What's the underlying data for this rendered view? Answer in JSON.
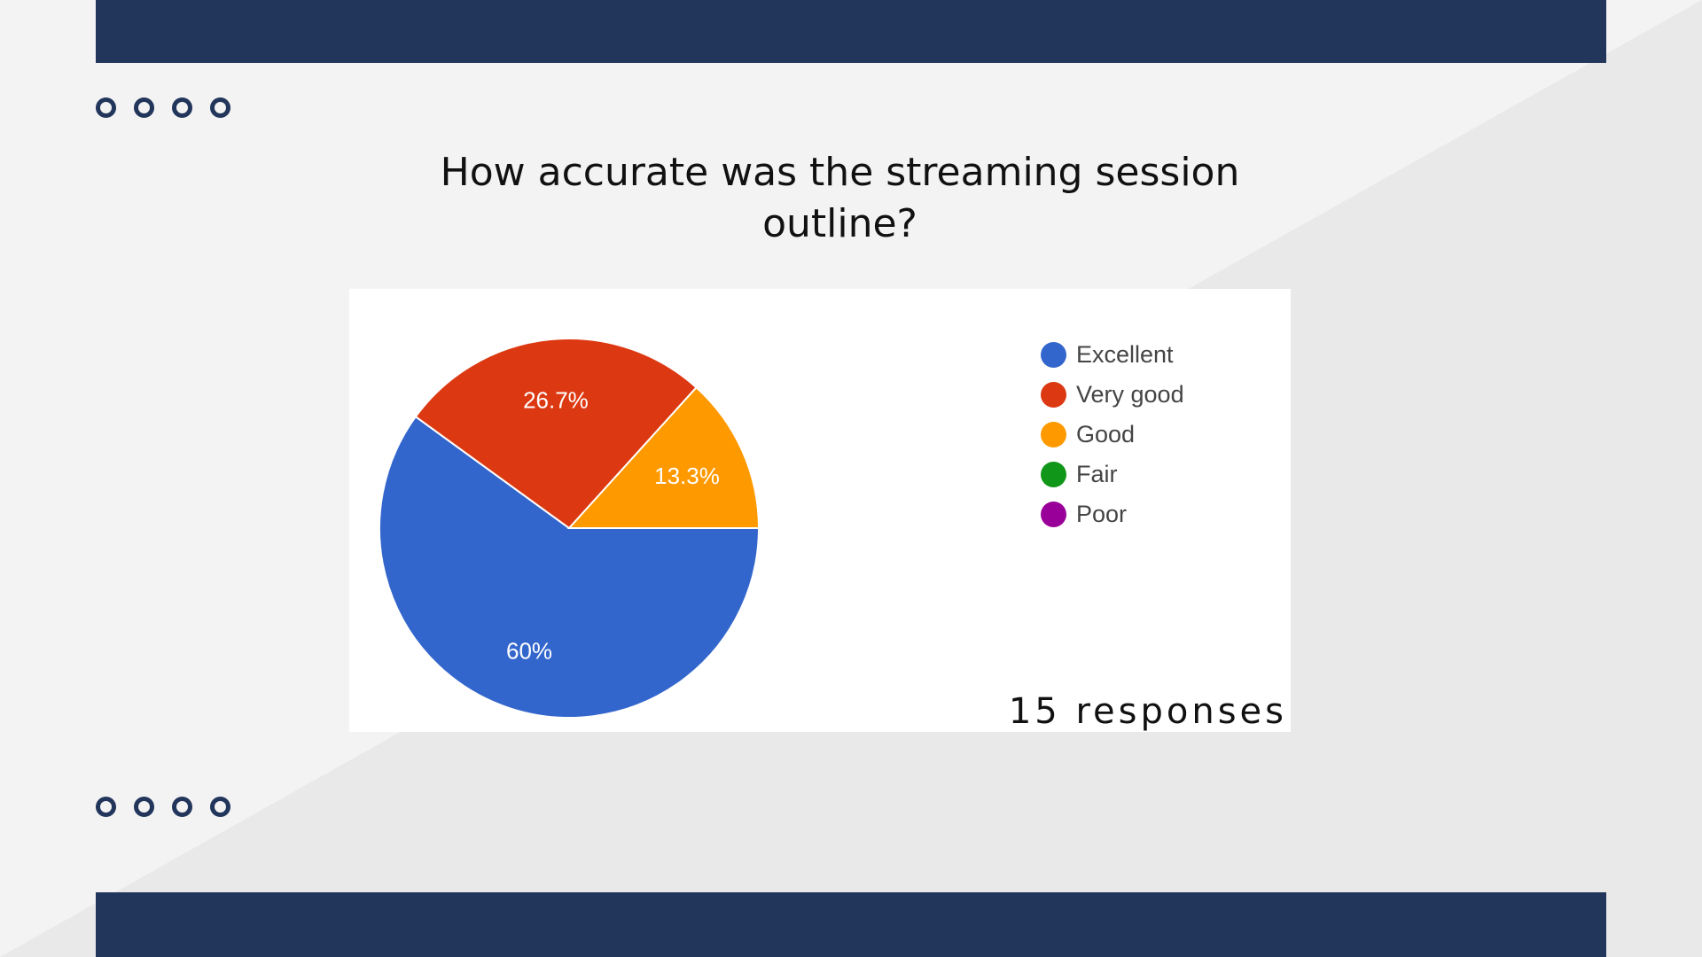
{
  "slide": {
    "title": "How accurate was the streaming session outline?",
    "responses_text": "15 responses",
    "colors": {
      "navy": "#22355a",
      "background": "#f3f3f3",
      "diagonal": "#e8e8e8"
    }
  },
  "chart_data": {
    "type": "pie",
    "title": "How accurate was the streaming session outline?",
    "legend_position": "right",
    "slices": [
      {
        "name": "Excellent",
        "value": 60,
        "label": "60%",
        "color": "#3366cc"
      },
      {
        "name": "Very good",
        "value": 26.7,
        "label": "26.7%",
        "color": "#dc3912"
      },
      {
        "name": "Good",
        "value": 13.3,
        "label": "13.3%",
        "color": "#ff9900"
      },
      {
        "name": "Fair",
        "value": 0,
        "label": "",
        "color": "#109618"
      },
      {
        "name": "Poor",
        "value": 0,
        "label": "",
        "color": "#990099"
      }
    ],
    "annotation": "15 responses"
  }
}
